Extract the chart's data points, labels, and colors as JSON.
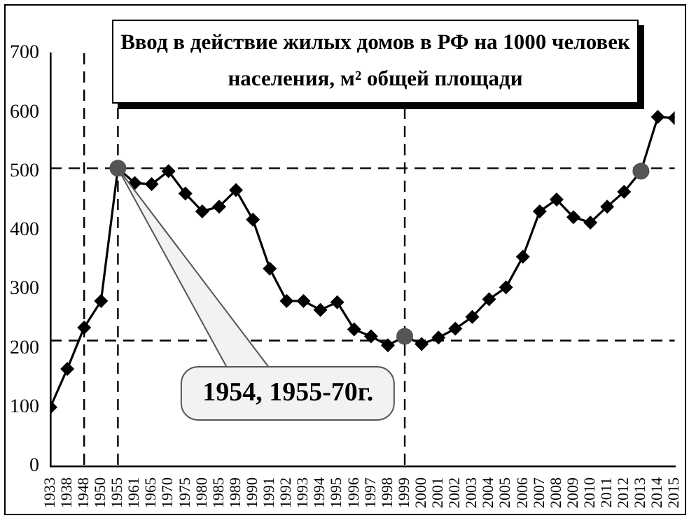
{
  "chart_data": {
    "type": "line",
    "title": "Ввод в действие жилых домов в РФ на 1000 человек населения, м² общей площади",
    "categories": [
      "1933",
      "1938",
      "1948",
      "1950",
      "1955",
      "1961",
      "1965",
      "1970",
      "1975",
      "1980",
      "1985",
      "1989",
      "1990",
      "1991",
      "1992",
      "1993",
      "1994",
      "1995",
      "1996",
      "1997",
      "1998",
      "1999",
      "2000",
      "2001",
      "2002",
      "2003",
      "2004",
      "2005",
      "2006",
      "2007",
      "2008",
      "2009",
      "2010",
      "2011",
      "2012",
      "2013",
      "2014",
      "2015"
    ],
    "series": [
      {
        "color": "#000000",
        "marker": "diamond",
        "values": [
          100,
          165,
          235,
          280,
          505,
          480,
          478,
          500,
          462,
          432,
          440,
          468,
          418,
          335,
          280,
          280,
          265,
          278,
          232,
          220,
          205,
          220,
          207,
          218,
          233,
          253,
          283,
          303,
          355,
          432,
          452,
          422,
          413,
          440,
          465,
          500,
          592,
          590
        ]
      },
      {
        "type": "scatter",
        "color": "#555555",
        "marker": "circle",
        "values": [
          null,
          null,
          null,
          null,
          505,
          null,
          null,
          null,
          null,
          null,
          null,
          null,
          null,
          null,
          null,
          null,
          null,
          null,
          null,
          null,
          null,
          220,
          null,
          null,
          null,
          null,
          null,
          null,
          null,
          null,
          null,
          null,
          null,
          null,
          null,
          500,
          null,
          null
        ]
      }
    ],
    "ylim": [
      0,
      700
    ],
    "yticks": [
      0,
      100,
      200,
      300,
      400,
      500,
      600,
      700
    ],
    "grid": false,
    "legend": false,
    "ref_lines": [
      {
        "axis": "y",
        "value": 505,
        "line_style": "dashed"
      },
      {
        "axis": "y",
        "value": 213,
        "line_style": "dashed"
      },
      {
        "axis": "x",
        "value": "1948",
        "line_style": "dashed"
      },
      {
        "axis": "x",
        "value": "1955",
        "line_style": "dashed"
      },
      {
        "axis": "x",
        "value": "1999",
        "line_style": "dashed"
      }
    ],
    "annotations": [
      "1954, 1955-70г."
    ]
  }
}
